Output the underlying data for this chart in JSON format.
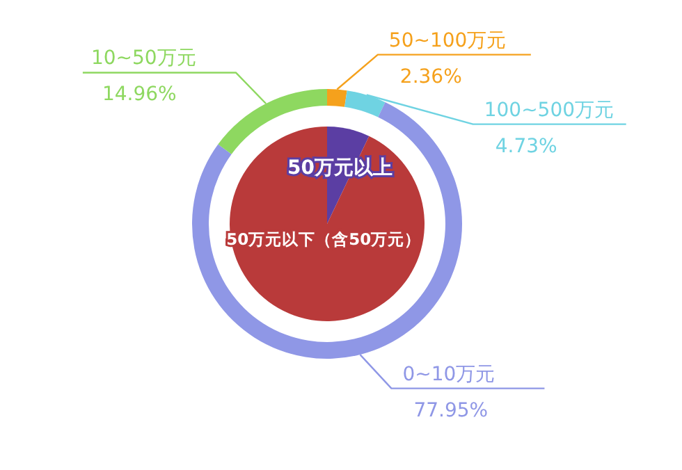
{
  "chart_data": [
    {
      "type": "pie",
      "categories": [
        "50万元以上",
        "50万元以下（含50万元）"
      ],
      "values": [
        7.09,
        92.91
      ],
      "colors": [
        "#5b3ea3",
        "#b93a3a"
      ]
    },
    {
      "type": "donut",
      "categories": [
        "50~100万元",
        "100~500万元",
        "0~10万元",
        "10~50万元"
      ],
      "values": [
        2.36,
        4.73,
        77.95,
        14.96
      ],
      "colors": [
        "#f5a11c",
        "#6fd3e2",
        "#8f97e6",
        "#8ed860"
      ],
      "value_labels": [
        "2.36%",
        "4.73%",
        "77.95%",
        "14.96%"
      ]
    }
  ]
}
